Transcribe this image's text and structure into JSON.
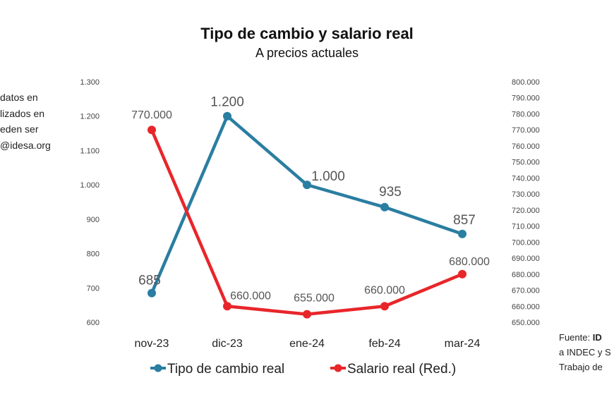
{
  "chart_data": {
    "type": "line",
    "title": "Tipo de cambio y salario real",
    "subtitle": "A precios actuales",
    "categories": [
      "nov-23",
      "dic-23",
      "ene-24",
      "feb-24",
      "mar-24"
    ],
    "series": [
      {
        "name": "Tipo de cambio real",
        "axis": "left",
        "color": "#2a7ea1",
        "values": [
          685,
          1200,
          1000,
          935,
          857
        ],
        "labels": [
          "685",
          "1.200",
          "1.000",
          "935",
          "857"
        ]
      },
      {
        "name": "Salario real (Red.)",
        "axis": "right",
        "color": "#e8262a",
        "values": [
          770000,
          660000,
          655000,
          660000,
          680000
        ],
        "labels": [
          "770.000",
          "660.000",
          "655.000",
          "660.000",
          "680.000"
        ]
      }
    ],
    "y_left": {
      "ylim": [
        600,
        1300
      ],
      "ticks": [
        "600",
        "700",
        "800",
        "900",
        "1.000",
        "1.100",
        "1.200",
        "1.300"
      ]
    },
    "y_right": {
      "ylim": [
        650000,
        800000
      ],
      "ticks": [
        "650.000",
        "660.000",
        "670.000",
        "680.000",
        "690.000",
        "700.000",
        "710.000",
        "720.000",
        "730.000",
        "740.000",
        "750.000",
        "760.000",
        "770.000",
        "780.000",
        "790.000",
        "800.000"
      ]
    },
    "grid": false,
    "legend": "bottom"
  },
  "side_note": [
    "datos en",
    "lizados en",
    "eden ser",
    "@idesa.org"
  ],
  "source": {
    "prefix": "Fuente: ",
    "bold": "ID",
    "line2": "a INDEC y S",
    "line3": "Trabajo de"
  }
}
